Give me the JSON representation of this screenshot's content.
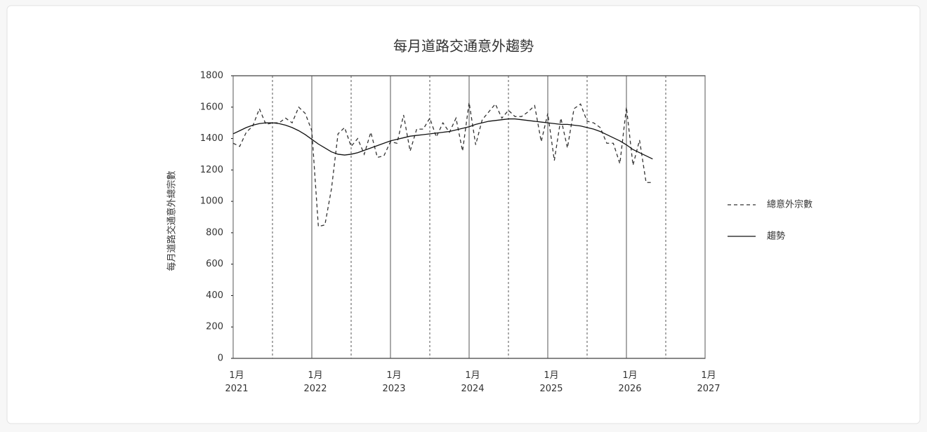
{
  "chart_data": {
    "type": "line",
    "title": "每月道路交通意外趨勢",
    "y_label": "每月道路交通意外總宗數",
    "x": [
      "2021-01",
      "2021-02",
      "2021-03",
      "2021-04",
      "2021-05",
      "2021-06",
      "2021-07",
      "2021-08",
      "2021-09",
      "2021-10",
      "2021-11",
      "2021-12",
      "2022-01",
      "2022-02",
      "2022-03",
      "2022-04",
      "2022-05",
      "2022-06",
      "2022-07",
      "2022-08",
      "2022-09",
      "2022-10",
      "2022-11",
      "2022-12",
      "2023-01",
      "2023-02",
      "2023-03",
      "2023-04",
      "2023-05",
      "2023-06",
      "2023-07",
      "2023-08",
      "2023-09",
      "2023-10",
      "2023-11",
      "2023-12",
      "2024-01",
      "2024-02",
      "2024-03",
      "2024-04",
      "2024-05",
      "2024-06",
      "2024-07",
      "2024-08",
      "2024-09",
      "2024-10",
      "2024-11",
      "2024-12",
      "2025-01",
      "2025-02",
      "2025-03",
      "2025-04",
      "2025-05",
      "2025-06",
      "2025-07",
      "2025-08",
      "2025-09",
      "2025-10",
      "2025-11",
      "2025-12",
      "2026-01",
      "2026-02",
      "2026-03",
      "2026-04",
      "2026-05"
    ],
    "series": [
      {
        "name": "總意外宗數",
        "color": "#333333",
        "dash": "5 4",
        "values": [
          1370,
          1350,
          1440,
          1480,
          1590,
          1490,
          1500,
          1500,
          1530,
          1500,
          1600,
          1560,
          1450,
          840,
          850,
          1080,
          1430,
          1470,
          1350,
          1400,
          1300,
          1440,
          1280,
          1290,
          1380,
          1370,
          1550,
          1320,
          1460,
          1460,
          1530,
          1410,
          1500,
          1440,
          1530,
          1320,
          1630,
          1360,
          1520,
          1570,
          1620,
          1530,
          1580,
          1540,
          1540,
          1570,
          1610,
          1380,
          1560,
          1260,
          1530,
          1340,
          1590,
          1620,
          1510,
          1500,
          1470,
          1370,
          1370,
          1240,
          1600,
          1230,
          1390,
          1120,
          1120
        ]
      },
      {
        "name": "趨勢",
        "color": "#111111",
        "dash": "none",
        "values": [
          1430,
          1450,
          1470,
          1485,
          1495,
          1500,
          1500,
          1495,
          1485,
          1470,
          1450,
          1425,
          1395,
          1365,
          1340,
          1315,
          1300,
          1295,
          1300,
          1310,
          1325,
          1340,
          1355,
          1370,
          1385,
          1395,
          1405,
          1415,
          1420,
          1425,
          1430,
          1435,
          1440,
          1445,
          1455,
          1465,
          1475,
          1490,
          1500,
          1510,
          1515,
          1520,
          1525,
          1525,
          1520,
          1515,
          1510,
          1505,
          1500,
          1495,
          1490,
          1490,
          1485,
          1480,
          1470,
          1460,
          1445,
          1425,
          1405,
          1385,
          1360,
          1330,
          1310,
          1290,
          1270
        ]
      }
    ],
    "xlim": [
      "2021-01",
      "2027-01"
    ],
    "xticks": [
      {
        "value": "2021-01",
        "label": "1月 2021"
      },
      {
        "value": "2022-01",
        "label": "1月 2022"
      },
      {
        "value": "2023-01",
        "label": "1月 2023"
      },
      {
        "value": "2024-01",
        "label": "1月 2024"
      },
      {
        "value": "2025-01",
        "label": "1月 2025"
      },
      {
        "value": "2026-01",
        "label": "1月 2026"
      },
      {
        "value": "2027-01",
        "label": "1月 2027"
      }
    ],
    "minor_xticks": [
      "2021-07",
      "2022-07",
      "2023-07",
      "2024-07",
      "2025-07",
      "2026-07"
    ],
    "ylim": [
      0,
      1800
    ],
    "yticks": [
      0,
      200,
      400,
      600,
      800,
      1000,
      1200,
      1400,
      1600,
      1800
    ],
    "grid": true,
    "legend": "right"
  }
}
